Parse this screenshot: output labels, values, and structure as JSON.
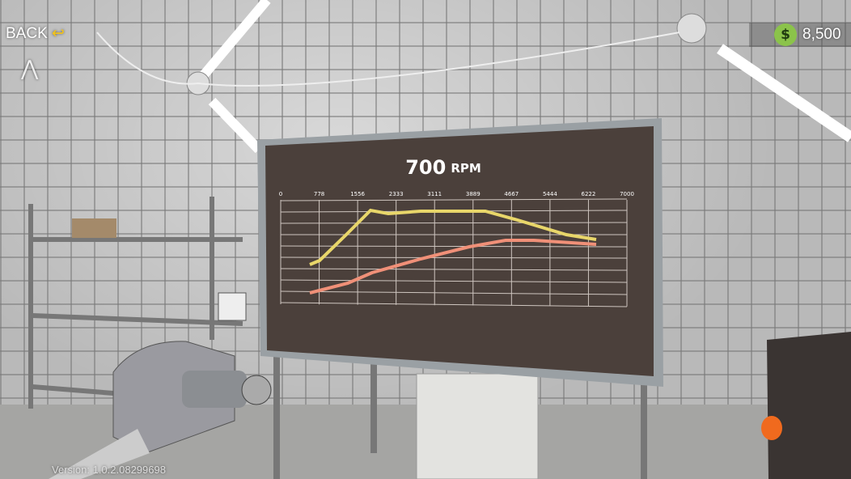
{
  "hud": {
    "back": "BACK",
    "money": "8,500",
    "version": "Version: 1.0.2.08299698"
  },
  "dyno": {
    "rpm": 700,
    "rpm_unit": "RPM",
    "x_ticks": [
      0,
      778,
      1556,
      2333,
      3111,
      3889,
      4667,
      5444,
      6222,
      7000
    ]
  }
}
